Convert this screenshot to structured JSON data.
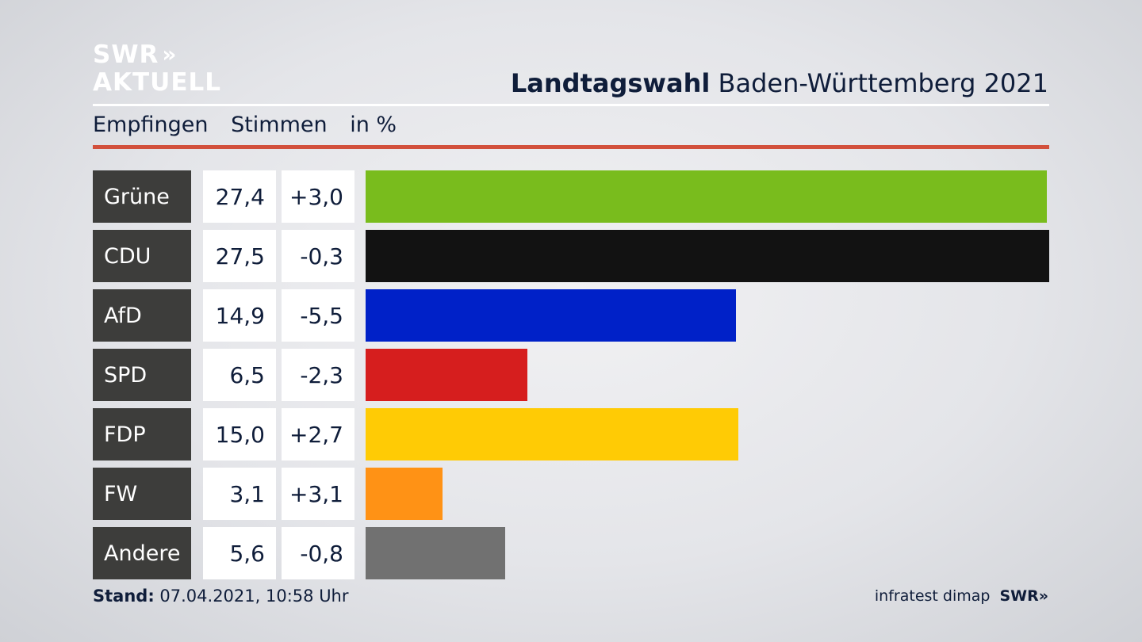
{
  "brand": {
    "logo_line1": "SWR",
    "logo_chevrons": "»",
    "logo_line2": "AKTUELL"
  },
  "header": {
    "title_bold": "Landtagswahl",
    "title_rest": "Baden-Württemberg 2021"
  },
  "subheader": {
    "col1": "Empfingen",
    "col2": "Stimmen",
    "col3": "in %"
  },
  "colors": {
    "accent_rule": "#d2503c",
    "label_bg": "#3d3d3b",
    "text": "#0f1d3a"
  },
  "chart_data": {
    "type": "bar",
    "orientation": "horizontal",
    "categories": [
      "Grüne",
      "CDU",
      "AfD",
      "SPD",
      "FDP",
      "FW",
      "Andere"
    ],
    "values": [
      27.4,
      27.5,
      14.9,
      6.5,
      15.0,
      3.1,
      5.6
    ],
    "value_labels": [
      "27,4",
      "27,5",
      "14,9",
      "6,5",
      "15,0",
      "3,1",
      "5,6"
    ],
    "diff_values": [
      3.0,
      -0.3,
      -5.5,
      -2.3,
      2.7,
      3.1,
      -0.8
    ],
    "diff_labels": [
      "+3,0",
      "-0,3",
      "-5,5",
      "-2,3",
      "+2,7",
      "+3,1",
      "-0,8"
    ],
    "bar_colors": [
      "#79bc1d",
      "#121212",
      "#0021c8",
      "#d61e1e",
      "#ffcb05",
      "#ff9215",
      "#717171"
    ],
    "xlim": [
      0,
      27.5
    ],
    "grid": false,
    "legend": "none",
    "unit": "%"
  },
  "footer": {
    "stand_label": "Stand:",
    "stand_value": "07.04.2021, 10:58 Uhr",
    "source": "infratest dimap",
    "source_brand": "SWR»"
  }
}
